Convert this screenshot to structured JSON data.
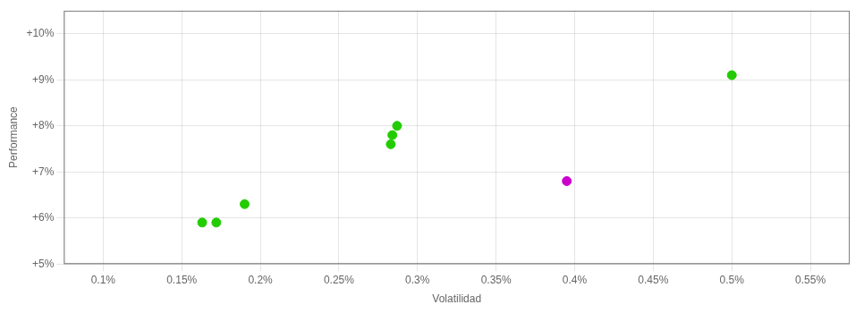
{
  "chart_data": {
    "type": "scatter",
    "xlabel": "Volatilidad",
    "ylabel": "Performance",
    "xlim": [
      0.075,
      0.575
    ],
    "ylim": [
      5.0,
      10.5
    ],
    "xticks": [
      {
        "value": 0.1,
        "label": "0.1%"
      },
      {
        "value": 0.15,
        "label": "0.15%"
      },
      {
        "value": 0.2,
        "label": "0.2%"
      },
      {
        "value": 0.25,
        "label": "0.25%"
      },
      {
        "value": 0.3,
        "label": "0.3%"
      },
      {
        "value": 0.35,
        "label": "0.35%"
      },
      {
        "value": 0.4,
        "label": "0.4%"
      },
      {
        "value": 0.45,
        "label": "0.45%"
      },
      {
        "value": 0.5,
        "label": "0.5%"
      },
      {
        "value": 0.55,
        "label": "0.55%"
      }
    ],
    "yticks": [
      {
        "value": 5.0,
        "label": "+5%"
      },
      {
        "value": 6.0,
        "label": "+6%"
      },
      {
        "value": 7.0,
        "label": "+7%"
      },
      {
        "value": 8.0,
        "label": "+8%"
      },
      {
        "value": 9.0,
        "label": "+9%"
      },
      {
        "value": 10.0,
        "label": "+10%"
      }
    ],
    "grid": true,
    "series": [
      {
        "color": "#22cc00",
        "x": [
          0.163,
          0.172,
          0.19,
          0.283,
          0.284,
          0.287,
          0.5
        ],
        "values": [
          5.9,
          5.9,
          6.3,
          7.6,
          7.8,
          8.0,
          9.1
        ]
      },
      {
        "color": "#cc00cc",
        "x": [
          0.395
        ],
        "values": [
          6.8
        ]
      }
    ]
  }
}
